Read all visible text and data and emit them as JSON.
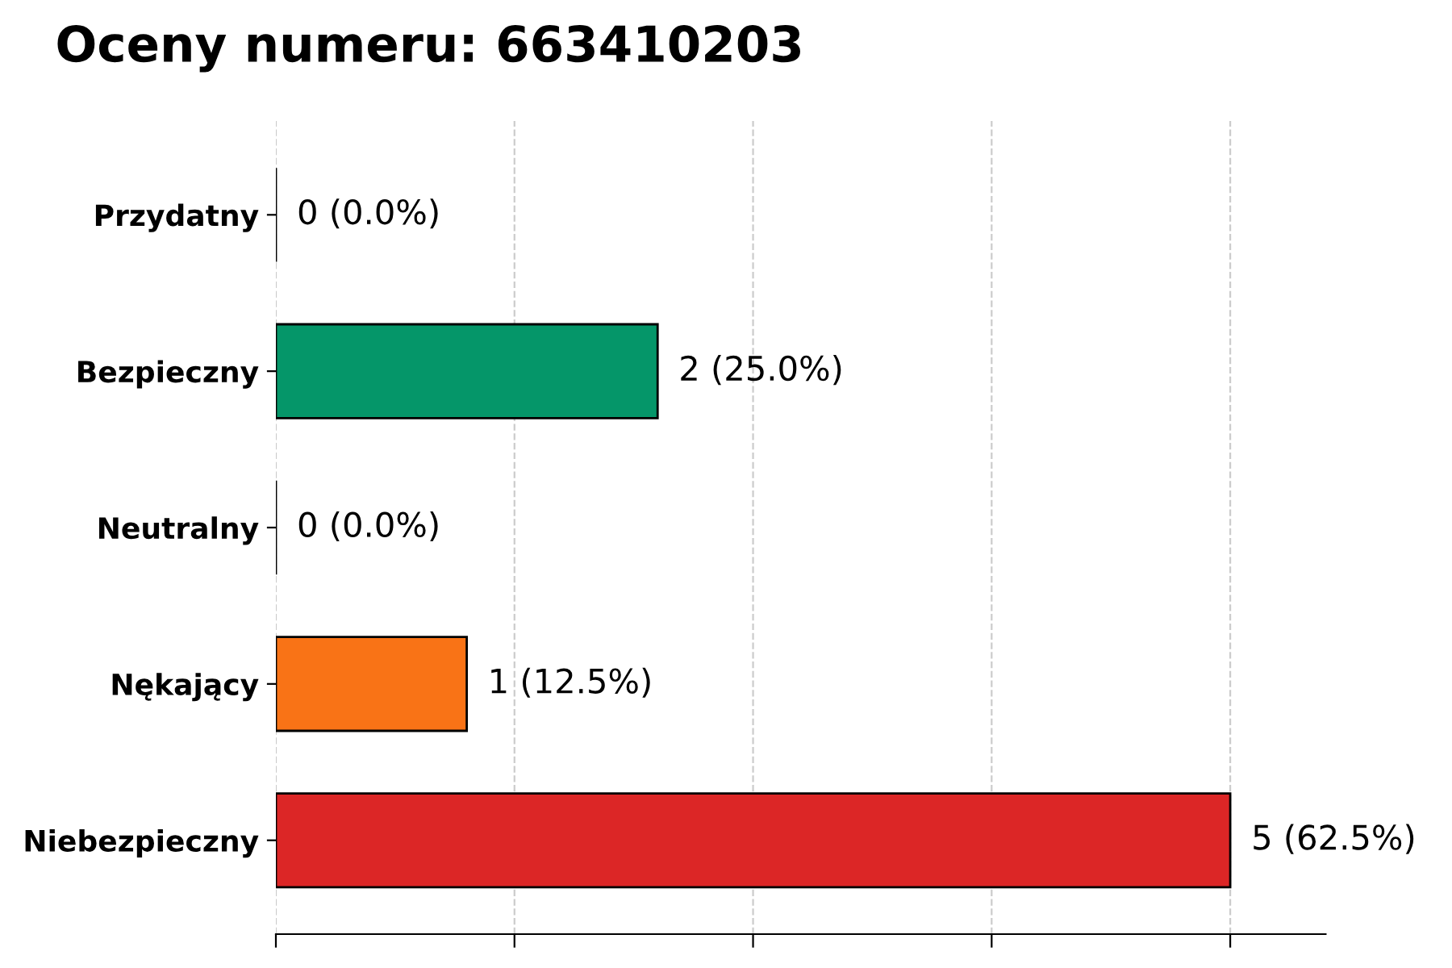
{
  "chart_data": {
    "type": "bar",
    "orientation": "horizontal",
    "title": "Oceny numeru: 663410203",
    "categories": [
      "Przydatny",
      "Bezpieczny",
      "Neutralny",
      "Nękający",
      "Niebezpieczny"
    ],
    "values": [
      0,
      2,
      0,
      1,
      5
    ],
    "colors": [
      "#000000",
      "#059669",
      "#000000",
      "#f97316",
      "#dc2626"
    ],
    "value_labels": [
      "0 (0.0%)",
      "2 (25.0%)",
      "0 (0.0%)",
      "1 (12.5%)",
      "5 (62.5%)"
    ],
    "xlim": [
      0,
      5.5
    ],
    "xticks": [
      {
        "value": 0,
        "label": null
      },
      {
        "value": 1.25,
        "label": null
      },
      {
        "value": 2.5,
        "label": null
      },
      {
        "value": 3.75,
        "label": null
      },
      {
        "value": 5,
        "label": null
      }
    ],
    "grid": "x",
    "tick_labels": "y"
  }
}
